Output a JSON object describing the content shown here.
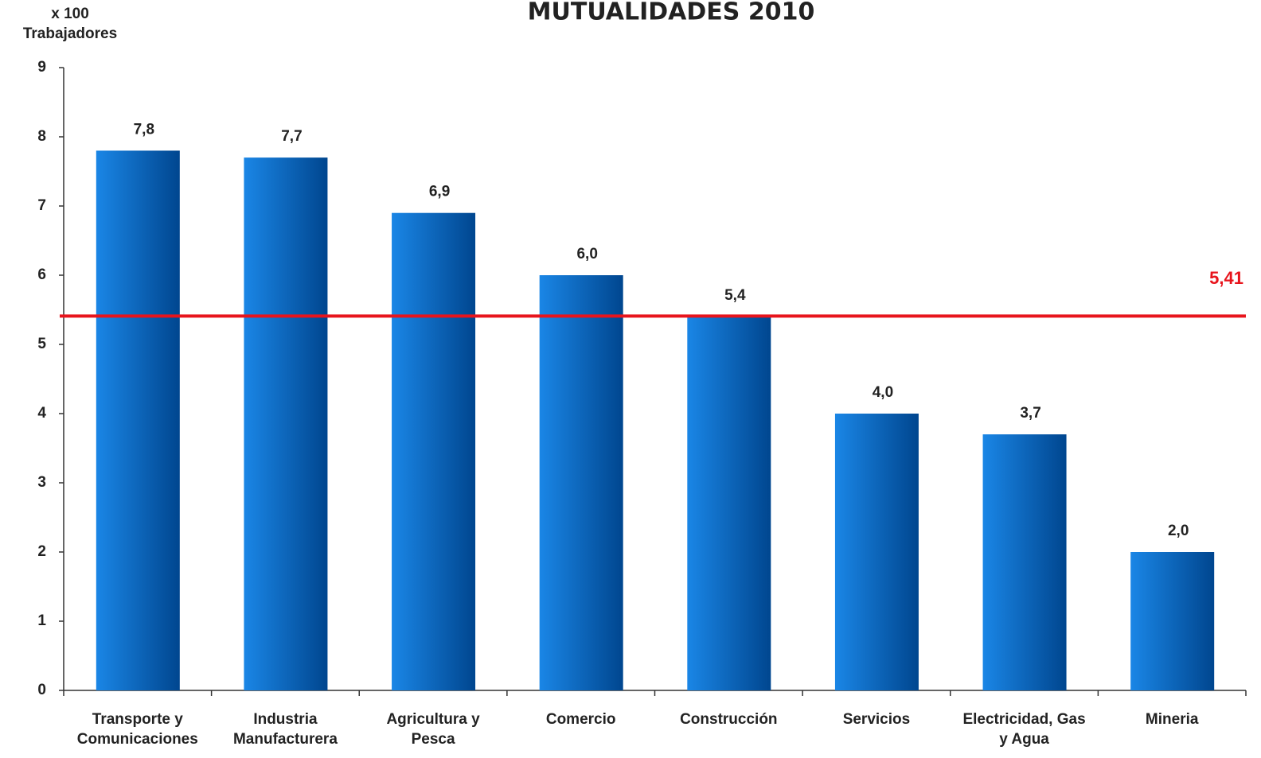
{
  "chart_data": {
    "type": "bar",
    "title": "MUTUALIDADES 2010",
    "y_unit": "x 100",
    "ylabel": "Trabajadores",
    "categories": [
      [
        "Transporte y",
        "Comunicaciones"
      ],
      [
        "Industria",
        "Manufacturera"
      ],
      [
        "Agricultura y",
        "Pesca"
      ],
      [
        "Comercio"
      ],
      [
        "Construcción"
      ],
      [
        "Servicios"
      ],
      [
        "Electricidad, Gas",
        "y Agua"
      ],
      [
        "Mineria"
      ]
    ],
    "values": [
      7.8,
      7.7,
      6.9,
      6.0,
      5.4,
      4.0,
      3.7,
      2.0
    ],
    "value_labels": [
      "7,8",
      "7,7",
      "6,9",
      "6,0",
      "5,4",
      "4,0",
      "3,7",
      "2,0"
    ],
    "color": "#1a86e6",
    "reference_line": {
      "value": 5.41,
      "label": "5,41",
      "color": "#e8141c"
    },
    "ylim": [
      0,
      9
    ],
    "yticks": [
      0,
      1,
      2,
      3,
      4,
      5,
      6,
      7,
      8,
      9
    ],
    "grid": false
  }
}
